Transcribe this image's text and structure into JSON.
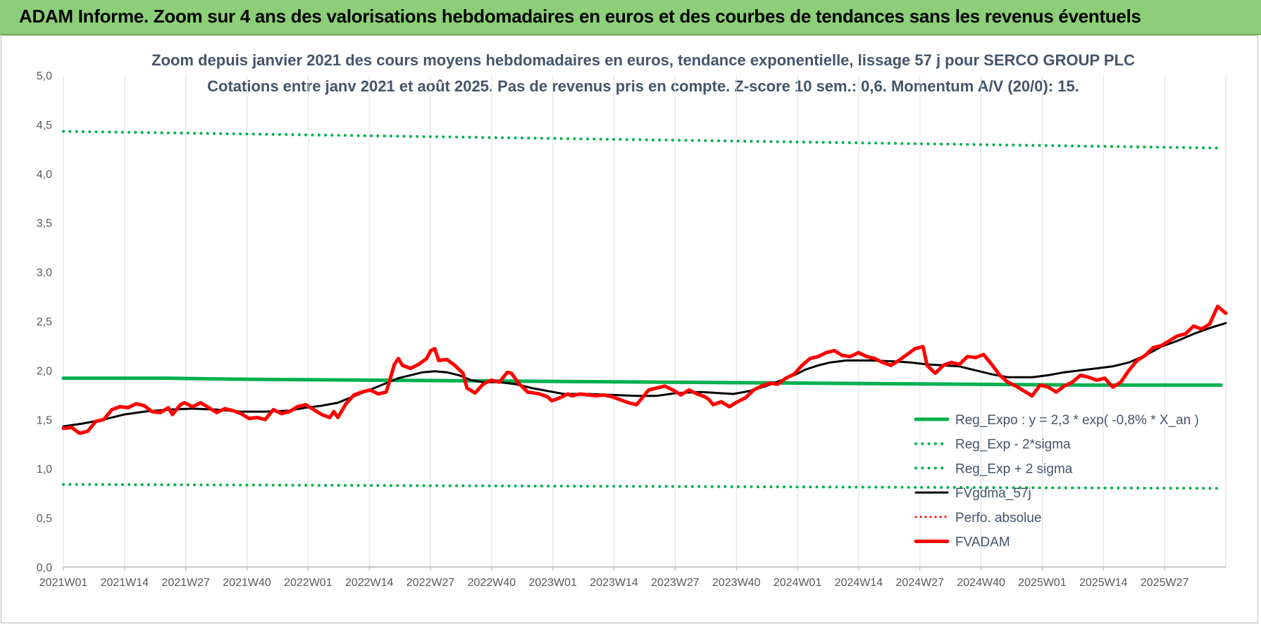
{
  "banner": {
    "title": "ADAM Informe. Zoom sur 4 ans des valorisations hebdomadaires en euros et des courbes de tendances sans les revenus éventuels",
    "bg_color": "#8ccf78"
  },
  "chart_data": {
    "type": "line",
    "title": "Zoom depuis janvier 2021 des cours moyens hebdomadaires en euros, tendance exponentielle, lissage 57 j pour SERCO GROUP PLC",
    "subtitle": "Cotations entre janv 2021 et août 2025.  Pas de revenus pris en compte. Z-score 10 sem.: 0,6. Momentum A/V (20/0): 15.",
    "xlabel": "",
    "ylabel": "",
    "ylim": [
      0,
      5
    ],
    "yticks": [
      "0,0",
      "0,5",
      "1,0",
      "1,5",
      "2,0",
      "2,5",
      "3,0",
      "3,5",
      "4,0",
      "4,5",
      "5,0"
    ],
    "x_tick_labels": [
      "2021W01",
      "2021W14",
      "2021W27",
      "2021W40",
      "2022W01",
      "2022W14",
      "2022W27",
      "2022W40",
      "2023W01",
      "2023W14",
      "2023W27",
      "2023W40",
      "2024W01",
      "2024W14",
      "2024W27",
      "2024W40",
      "2025W01",
      "2025W14",
      "2025W27"
    ],
    "x_weeks": 243,
    "grid": "vertical",
    "legend_position": "bottom-right",
    "series": [
      {
        "name": "Reg_Expo : y = 2,3 * exp( -0,8% *  X_an )",
        "color": "#00b050",
        "style": "solid",
        "width": 5,
        "points": [
          [
            0,
            1.92
          ],
          [
            22,
            1.92
          ],
          [
            36,
            1.91
          ],
          [
            214,
            1.85
          ],
          [
            242,
            1.85
          ]
        ]
      },
      {
        "name": "Reg_Exp - 2*sigma",
        "color": "#00b050",
        "style": "dotted",
        "width": 4,
        "points": [
          [
            0,
            0.84
          ],
          [
            242,
            0.8
          ]
        ]
      },
      {
        "name": "Reg_Exp + 2 sigma",
        "color": "#00b050",
        "style": "dotted",
        "width": 4,
        "points": [
          [
            0,
            4.43
          ],
          [
            242,
            4.26
          ]
        ]
      },
      {
        "name": "FVgdma_57j",
        "color": "#000000",
        "style": "solid",
        "width": 3,
        "points": [
          [
            0,
            1.43
          ],
          [
            5,
            1.46
          ],
          [
            10,
            1.5
          ],
          [
            15,
            1.55
          ],
          [
            20,
            1.58
          ],
          [
            26,
            1.6
          ],
          [
            32,
            1.61
          ],
          [
            38,
            1.6
          ],
          [
            44,
            1.58
          ],
          [
            50,
            1.58
          ],
          [
            56,
            1.59
          ],
          [
            60,
            1.62
          ],
          [
            64,
            1.64
          ],
          [
            68,
            1.67
          ],
          [
            71,
            1.72
          ],
          [
            74,
            1.77
          ],
          [
            77,
            1.82
          ],
          [
            80,
            1.87
          ],
          [
            83,
            1.92
          ],
          [
            86,
            1.95
          ],
          [
            89,
            1.98
          ],
          [
            92,
            1.99
          ],
          [
            95,
            1.98
          ],
          [
            98,
            1.95
          ],
          [
            101,
            1.9
          ],
          [
            104,
            1.88
          ],
          [
            108,
            1.88
          ],
          [
            112,
            1.86
          ],
          [
            116,
            1.82
          ],
          [
            120,
            1.79
          ],
          [
            124,
            1.76
          ],
          [
            130,
            1.76
          ],
          [
            136,
            1.75
          ],
          [
            142,
            1.74
          ],
          [
            147,
            1.74
          ],
          [
            152,
            1.77
          ],
          [
            158,
            1.78
          ],
          [
            162,
            1.77
          ],
          [
            166,
            1.76
          ],
          [
            170,
            1.79
          ],
          [
            174,
            1.84
          ],
          [
            178,
            1.9
          ],
          [
            181,
            1.95
          ],
          [
            184,
            2.01
          ],
          [
            187,
            2.05
          ],
          [
            190,
            2.08
          ],
          [
            194,
            2.1
          ],
          [
            200,
            2.1
          ],
          [
            206,
            2.09
          ],
          [
            210,
            2.08
          ],
          [
            214,
            2.06
          ],
          [
            218,
            2.05
          ],
          [
            222,
            2.04
          ],
          [
            226,
            2.0
          ],
          [
            230,
            1.96
          ],
          [
            234,
            1.93
          ],
          [
            240,
            1.93
          ],
          [
            244,
            1.95
          ],
          [
            248,
            1.98
          ],
          [
            252,
            2.0
          ],
          [
            256,
            2.02
          ],
          [
            260,
            2.04
          ],
          [
            264,
            2.08
          ],
          [
            268,
            2.15
          ],
          [
            272,
            2.24
          ],
          [
            276,
            2.3
          ],
          [
            280,
            2.37
          ],
          [
            284,
            2.43
          ],
          [
            288,
            2.48
          ]
        ]
      },
      {
        "name": "Perfo. absolue",
        "color": "#ff0000",
        "style": "dotted",
        "width": 3,
        "points": []
      },
      {
        "name": "FVADAM",
        "color": "#ff0000",
        "style": "solid",
        "width": 5,
        "points": [
          [
            0,
            1.41
          ],
          [
            2,
            1.42
          ],
          [
            4,
            1.36
          ],
          [
            6,
            1.38
          ],
          [
            8,
            1.48
          ],
          [
            10,
            1.5
          ],
          [
            12,
            1.6
          ],
          [
            14,
            1.63
          ],
          [
            16,
            1.62
          ],
          [
            18,
            1.66
          ],
          [
            20,
            1.64
          ],
          [
            22,
            1.58
          ],
          [
            24,
            1.57
          ],
          [
            26,
            1.62
          ],
          [
            27,
            1.55
          ],
          [
            29,
            1.65
          ],
          [
            30,
            1.67
          ],
          [
            32,
            1.63
          ],
          [
            34,
            1.67
          ],
          [
            36,
            1.62
          ],
          [
            38,
            1.57
          ],
          [
            40,
            1.61
          ],
          [
            42,
            1.59
          ],
          [
            44,
            1.56
          ],
          [
            46,
            1.51
          ],
          [
            48,
            1.52
          ],
          [
            50,
            1.5
          ],
          [
            52,
            1.6
          ],
          [
            54,
            1.56
          ],
          [
            56,
            1.58
          ],
          [
            58,
            1.63
          ],
          [
            60,
            1.65
          ],
          [
            62,
            1.6
          ],
          [
            64,
            1.55
          ],
          [
            66,
            1.52
          ],
          [
            67,
            1.58
          ],
          [
            68,
            1.52
          ],
          [
            70,
            1.66
          ],
          [
            72,
            1.75
          ],
          [
            74,
            1.78
          ],
          [
            76,
            1.8
          ],
          [
            78,
            1.76
          ],
          [
            80,
            1.78
          ],
          [
            82,
            2.06
          ],
          [
            83,
            2.12
          ],
          [
            84,
            2.05
          ],
          [
            86,
            2.02
          ],
          [
            88,
            2.06
          ],
          [
            90,
            2.12
          ],
          [
            91,
            2.2
          ],
          [
            92,
            2.22
          ],
          [
            93,
            2.1
          ],
          [
            95,
            2.11
          ],
          [
            97,
            2.05
          ],
          [
            99,
            1.97
          ],
          [
            100,
            1.82
          ],
          [
            102,
            1.77
          ],
          [
            104,
            1.86
          ],
          [
            106,
            1.9
          ],
          [
            108,
            1.88
          ],
          [
            110,
            1.98
          ],
          [
            111,
            1.97
          ],
          [
            113,
            1.86
          ],
          [
            115,
            1.78
          ],
          [
            118,
            1.76
          ],
          [
            120,
            1.73
          ],
          [
            121,
            1.69
          ],
          [
            123,
            1.72
          ],
          [
            125,
            1.76
          ],
          [
            126,
            1.74
          ],
          [
            128,
            1.76
          ],
          [
            130,
            1.75
          ],
          [
            132,
            1.74
          ],
          [
            134,
            1.75
          ],
          [
            136,
            1.73
          ],
          [
            138,
            1.7
          ],
          [
            140,
            1.67
          ],
          [
            142,
            1.65
          ],
          [
            143,
            1.7
          ],
          [
            145,
            1.8
          ],
          [
            147,
            1.82
          ],
          [
            149,
            1.84
          ],
          [
            151,
            1.8
          ],
          [
            153,
            1.75
          ],
          [
            155,
            1.8
          ],
          [
            157,
            1.76
          ],
          [
            159,
            1.73
          ],
          [
            160,
            1.7
          ],
          [
            161,
            1.65
          ],
          [
            163,
            1.68
          ],
          [
            165,
            1.63
          ],
          [
            167,
            1.68
          ],
          [
            169,
            1.72
          ],
          [
            171,
            1.8
          ],
          [
            173,
            1.84
          ],
          [
            175,
            1.87
          ],
          [
            177,
            1.86
          ],
          [
            179,
            1.92
          ],
          [
            181,
            1.96
          ],
          [
            183,
            2.05
          ],
          [
            185,
            2.12
          ],
          [
            187,
            2.14
          ],
          [
            189,
            2.18
          ],
          [
            191,
            2.2
          ],
          [
            193,
            2.15
          ],
          [
            195,
            2.14
          ],
          [
            197,
            2.18
          ],
          [
            199,
            2.14
          ],
          [
            201,
            2.12
          ],
          [
            203,
            2.08
          ],
          [
            205,
            2.05
          ],
          [
            207,
            2.1
          ],
          [
            209,
            2.16
          ],
          [
            211,
            2.22
          ],
          [
            213,
            2.24
          ],
          [
            214,
            2.05
          ],
          [
            216,
            1.97
          ],
          [
            218,
            2.05
          ],
          [
            220,
            2.08
          ],
          [
            222,
            2.06
          ],
          [
            224,
            2.14
          ],
          [
            226,
            2.13
          ],
          [
            228,
            2.16
          ],
          [
            230,
            2.06
          ],
          [
            232,
            1.95
          ],
          [
            234,
            1.88
          ],
          [
            236,
            1.84
          ],
          [
            238,
            1.79
          ],
          [
            240,
            1.74
          ],
          [
            242,
            1.85
          ],
          [
            244,
            1.83
          ],
          [
            246,
            1.78
          ],
          [
            248,
            1.84
          ],
          [
            250,
            1.88
          ],
          [
            252,
            1.95
          ],
          [
            254,
            1.93
          ],
          [
            256,
            1.9
          ],
          [
            258,
            1.92
          ],
          [
            260,
            1.83
          ],
          [
            262,
            1.88
          ],
          [
            264,
            2.0
          ],
          [
            266,
            2.1
          ],
          [
            268,
            2.15
          ],
          [
            270,
            2.23
          ],
          [
            272,
            2.25
          ],
          [
            274,
            2.3
          ],
          [
            276,
            2.35
          ],
          [
            278,
            2.37
          ],
          [
            280,
            2.45
          ],
          [
            282,
            2.42
          ],
          [
            284,
            2.47
          ],
          [
            286,
            2.65
          ],
          [
            288,
            2.58
          ]
        ]
      }
    ]
  }
}
